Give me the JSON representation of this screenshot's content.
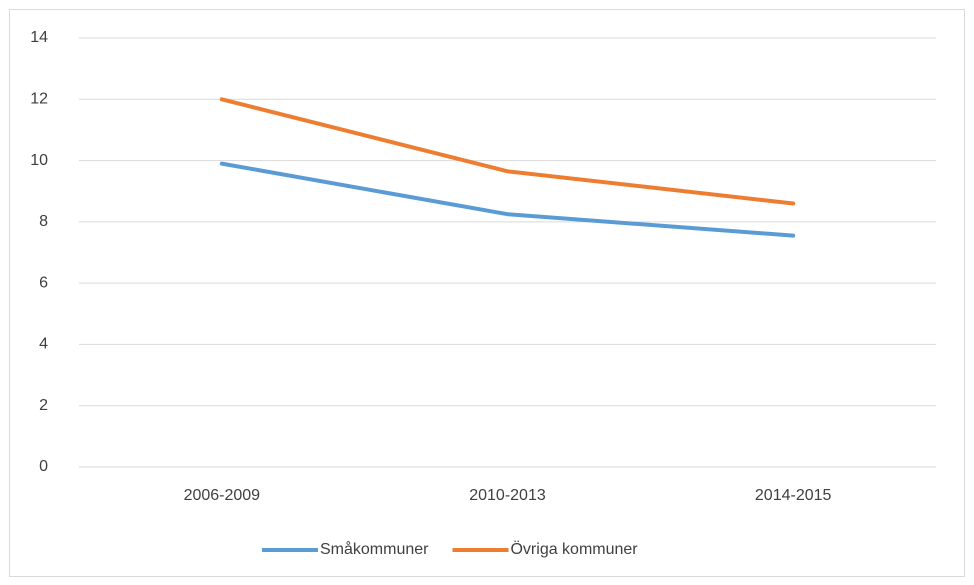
{
  "chart_data": {
    "type": "line",
    "categories": [
      "2006-2009",
      "2010-2013",
      "2014-2015"
    ],
    "series": [
      {
        "name": "Småkommuner",
        "color": "#5b9bd5",
        "values": [
          9.9,
          8.25,
          7.55
        ]
      },
      {
        "name": "Övriga kommuner",
        "color": "#ed7d31",
        "values": [
          12.0,
          9.65,
          8.6
        ]
      }
    ],
    "ylim": [
      0,
      14
    ],
    "yticks": [
      0,
      2,
      4,
      6,
      8,
      10,
      12,
      14
    ],
    "grid": true,
    "legend": "bottom"
  }
}
